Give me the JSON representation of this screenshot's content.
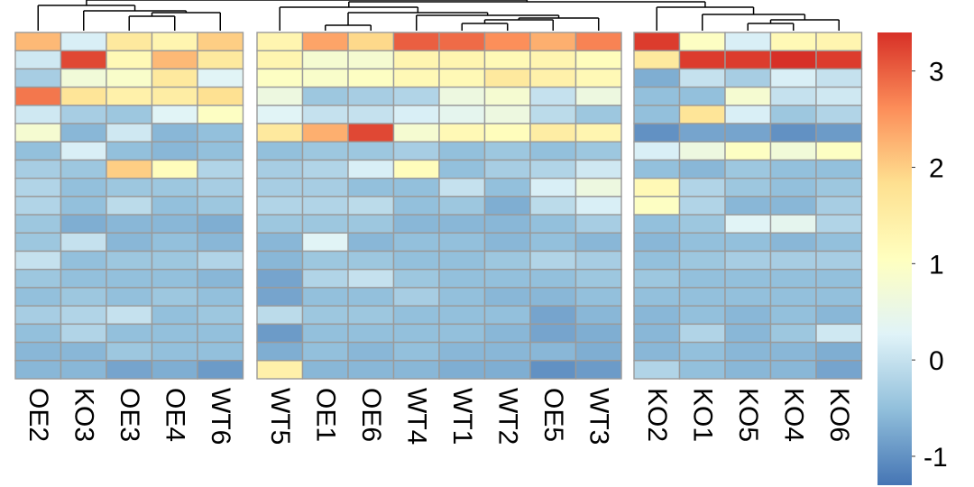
{
  "chart_data": {
    "type": "heatmap",
    "title": "",
    "xlabel": "",
    "ylabel": "",
    "columns": [
      "OE2",
      "KO3",
      "OE3",
      "OE4",
      "WT6",
      "WT5",
      "OE1",
      "OE6",
      "WT4",
      "WT1",
      "WT2",
      "OE5",
      "WT3",
      "KO2",
      "KO1",
      "KO5",
      "KO4",
      "KO6"
    ],
    "column_groups": [
      [
        "OE2",
        "KO3",
        "OE3",
        "OE4",
        "WT6"
      ],
      [
        "WT5",
        "OE1",
        "OE6",
        "WT4",
        "WT1",
        "WT2",
        "OE5",
        "WT3"
      ],
      [
        "KO2",
        "KO1",
        "KO5",
        "KO4",
        "KO6"
      ]
    ],
    "row_count": 19,
    "values": [
      [
        2.2,
        0.2,
        1.6,
        1.3,
        2.0,
        1.3,
        2.4,
        1.9,
        3.0,
        2.9,
        2.6,
        2.3,
        2.7,
        3.3,
        1.0,
        0.2,
        1.2,
        1.3
      ],
      [
        0.1,
        3.2,
        1.2,
        2.2,
        1.6,
        1.3,
        0.8,
        0.8,
        1.3,
        1.3,
        1.2,
        1.3,
        1.1,
        1.6,
        3.3,
        3.3,
        3.5,
        3.3
      ],
      [
        -0.3,
        0.7,
        0.9,
        1.6,
        0.3,
        1.0,
        0.9,
        1.0,
        1.2,
        1.2,
        1.6,
        1.4,
        1.2,
        -0.7,
        0.0,
        -0.3,
        0.2,
        0.0
      ],
      [
        2.8,
        1.7,
        1.4,
        1.5,
        1.8,
        0.6,
        -0.4,
        -0.3,
        -0.2,
        0.6,
        0.8,
        0.0,
        0.6,
        -0.5,
        -0.5,
        0.8,
        0.0,
        0.1
      ],
      [
        0.1,
        -0.3,
        -0.4,
        0.3,
        1.0,
        0.3,
        0.0,
        0.0,
        0.2,
        0.4,
        0.6,
        -0.1,
        -0.4,
        -0.5,
        1.7,
        0.2,
        -0.4,
        -0.2
      ],
      [
        0.8,
        -0.6,
        0.1,
        -0.6,
        -0.5,
        1.6,
        2.3,
        3.2,
        0.8,
        1.2,
        1.1,
        1.5,
        1.3,
        -1.0,
        -0.8,
        -0.8,
        -1.0,
        -0.9
      ],
      [
        -0.5,
        0.2,
        -0.5,
        -0.6,
        -0.5,
        -0.5,
        -0.4,
        -0.4,
        -0.3,
        -0.5,
        -0.4,
        -0.5,
        -0.4,
        0.2,
        0.6,
        1.0,
        0.7,
        1.0
      ],
      [
        -0.3,
        -0.4,
        2.0,
        1.1,
        -0.2,
        -0.3,
        -0.2,
        0.2,
        1.1,
        -0.5,
        -0.3,
        -0.2,
        0.1,
        -0.5,
        -0.6,
        -0.4,
        -0.5,
        -0.5
      ],
      [
        -0.2,
        -0.5,
        -0.4,
        -0.4,
        -0.3,
        -0.3,
        -0.3,
        -0.5,
        -0.5,
        0.0,
        -0.5,
        0.2,
        0.6,
        1.2,
        -0.2,
        -0.4,
        -0.5,
        -0.4
      ],
      [
        -0.2,
        -0.5,
        -0.1,
        -0.5,
        -0.4,
        -0.2,
        -0.2,
        -0.1,
        -0.5,
        -0.4,
        -0.7,
        -0.1,
        0.2,
        1.0,
        -0.2,
        -0.6,
        -0.6,
        -0.3
      ],
      [
        -0.4,
        -0.7,
        -0.6,
        -0.6,
        -0.7,
        -0.4,
        -0.4,
        -0.4,
        -0.6,
        -0.6,
        -0.6,
        -0.5,
        -0.3,
        -0.5,
        -0.4,
        0.3,
        0.4,
        -0.2
      ],
      [
        -0.4,
        0.0,
        -0.6,
        -0.5,
        -0.6,
        -0.6,
        0.3,
        -0.6,
        -0.5,
        -0.5,
        -0.6,
        -0.5,
        -0.6,
        -0.6,
        -0.5,
        -0.5,
        -0.6,
        -0.5
      ],
      [
        0.0,
        -0.5,
        -0.4,
        -0.4,
        -0.2,
        -0.6,
        -0.4,
        -0.4,
        -0.5,
        -0.5,
        -0.4,
        -0.2,
        -0.3,
        -0.5,
        -0.4,
        -0.3,
        -0.3,
        -0.3
      ],
      [
        -0.4,
        -0.5,
        -0.5,
        -0.5,
        -0.6,
        -0.8,
        -0.2,
        0.0,
        -0.4,
        -0.5,
        -0.5,
        -0.5,
        -0.4,
        -0.4,
        -0.5,
        -0.5,
        -0.5,
        -0.5
      ],
      [
        -0.5,
        -0.4,
        -0.5,
        -0.4,
        -0.5,
        -0.8,
        -0.5,
        -0.5,
        -0.3,
        -0.5,
        -0.6,
        -0.6,
        -0.5,
        -0.5,
        -0.5,
        -0.5,
        -0.5,
        -0.5
      ],
      [
        -0.3,
        -0.2,
        0.0,
        -0.5,
        -0.4,
        -0.1,
        -0.4,
        -0.4,
        -0.5,
        -0.5,
        -0.5,
        -0.8,
        -0.6,
        -0.6,
        -0.5,
        -0.6,
        -0.5,
        -0.6
      ],
      [
        -0.5,
        -0.2,
        -0.5,
        -0.5,
        -0.5,
        -0.9,
        -0.5,
        -0.5,
        -0.5,
        -0.5,
        -0.6,
        -0.8,
        -0.7,
        -0.6,
        -0.2,
        -0.6,
        -0.4,
        0.1
      ],
      [
        -0.6,
        -0.6,
        -0.4,
        -0.5,
        -0.5,
        -0.7,
        -0.5,
        -0.6,
        -0.5,
        -0.6,
        -0.6,
        -0.6,
        -0.7,
        -0.6,
        -0.5,
        -0.6,
        -0.6,
        -0.7
      ],
      [
        -0.6,
        -0.6,
        -0.8,
        -0.7,
        -0.9,
        1.4,
        -0.6,
        -0.6,
        -0.6,
        -0.7,
        -0.7,
        -1.0,
        -0.9,
        -0.2,
        -0.5,
        -0.6,
        -0.6,
        -0.8
      ]
    ],
    "scale_min": -1.3,
    "scale_max": 3.4,
    "colorscale": [
      "#4575b4",
      "#91bfdb",
      "#e0f3f8",
      "#ffffbf",
      "#fee090",
      "#fc8d59",
      "#d73027"
    ],
    "legend": {
      "position": "right",
      "ticks": [
        {
          "value": 3,
          "label": "3"
        },
        {
          "value": 2,
          "label": "2"
        },
        {
          "value": 1,
          "label": "1"
        },
        {
          "value": 0,
          "label": "0"
        },
        {
          "value": -1,
          "label": "-1"
        }
      ]
    },
    "dendrogram": "top"
  }
}
